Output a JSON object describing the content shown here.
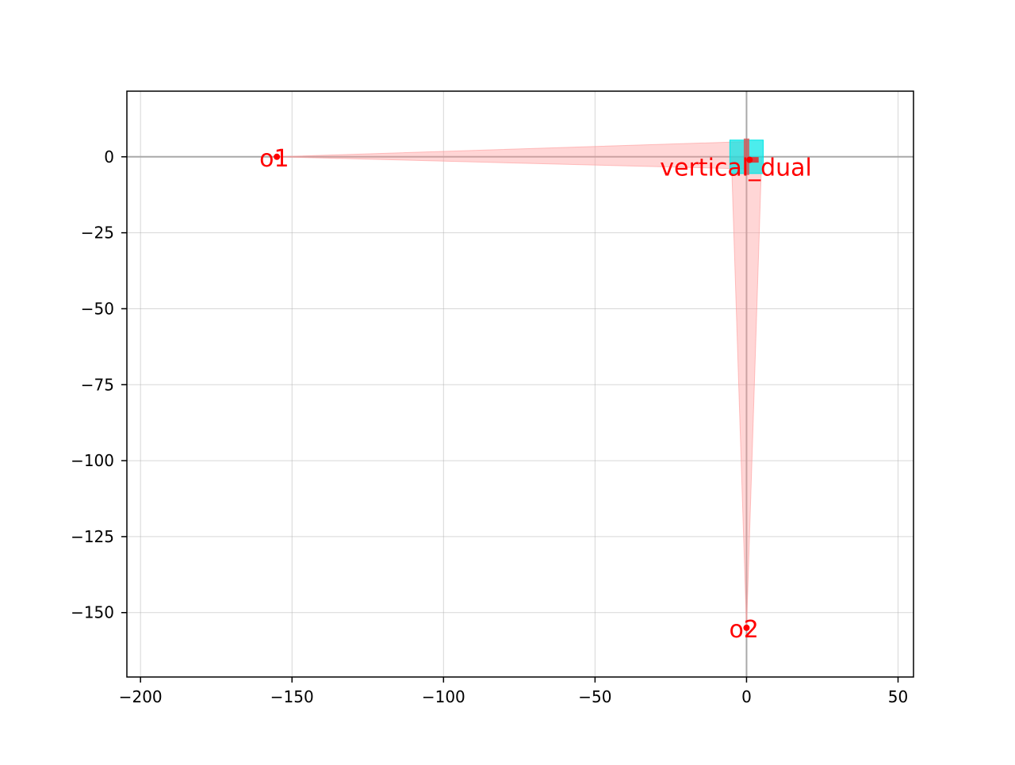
{
  "chart_data": {
    "type": "scatter",
    "title": "",
    "xlabel": "",
    "ylabel": "",
    "xlim": [
      -204.5,
      55.1
    ],
    "ylim": [
      -171.2,
      21.6
    ],
    "x_ticks": [
      -200,
      -150,
      -100,
      -50,
      0,
      50
    ],
    "x_tick_labels": [
      "−200",
      "−150",
      "−100",
      "−50",
      "0",
      "50"
    ],
    "y_ticks": [
      0,
      -25,
      -50,
      -75,
      -100,
      -125,
      -150
    ],
    "y_tick_labels": [
      "0",
      "−25",
      "−50",
      "−75",
      "−100",
      "−125",
      "−150"
    ],
    "grid": true,
    "legend": "none",
    "axis_lines": [
      {
        "orientation": "horizontal",
        "value": 0
      },
      {
        "orientation": "vertical",
        "value": 0
      }
    ],
    "rect": {
      "x": [
        -5.5,
        5.5
      ],
      "y": [
        -5.5,
        5.5
      ],
      "color": "#00e5e5"
    },
    "beams": [
      {
        "apex": [
          -155,
          0
        ],
        "base": [
          [
            0,
            5
          ],
          [
            0,
            -4
          ]
        ],
        "color": "#ff9999"
      },
      {
        "apex": [
          0,
          -155
        ],
        "base": [
          [
            -5,
            0
          ],
          [
            5,
            0
          ]
        ],
        "color": "#ff9999"
      }
    ],
    "points": [
      {
        "name": "o1",
        "x": -155,
        "y": 0
      },
      {
        "name": "o2",
        "x": 0,
        "y": -155
      },
      {
        "name": "vertical_dual",
        "x": 1,
        "y": -1
      }
    ],
    "annotation_color": "#ff0000"
  }
}
